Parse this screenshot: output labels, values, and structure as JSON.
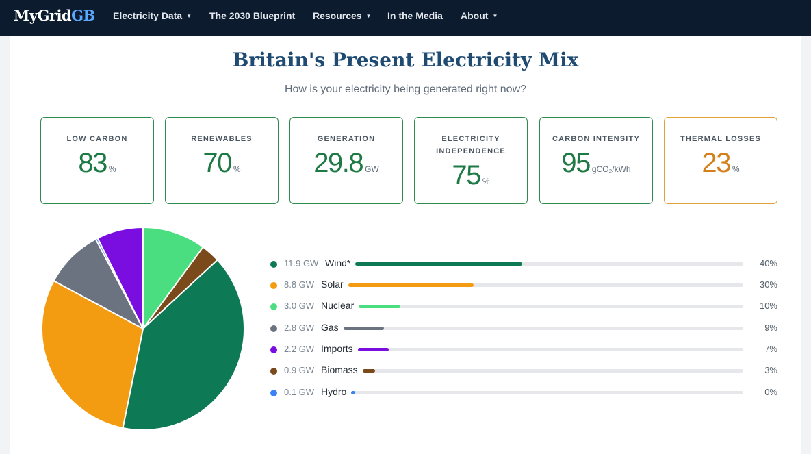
{
  "brand": {
    "part1": "MyGrid",
    "part2": "GB"
  },
  "nav": [
    {
      "label": "Electricity Data",
      "dropdown": true
    },
    {
      "label": "The 2030 Blueprint",
      "dropdown": false
    },
    {
      "label": "Resources",
      "dropdown": true
    },
    {
      "label": "In the Media",
      "dropdown": false
    },
    {
      "label": "About",
      "dropdown": true
    }
  ],
  "page": {
    "title": "Britain's Present Electricity Mix",
    "subtitle": "How is your electricity being generated right now?"
  },
  "cards": [
    {
      "label": "LOW CARBON",
      "value": "83",
      "unit": "%"
    },
    {
      "label": "RENEWABLES",
      "value": "70",
      "unit": "%"
    },
    {
      "label": "GENERATION",
      "value": "29.8",
      "unit": "GW"
    },
    {
      "label": "ELECTRICITY INDEPENDENCE",
      "value": "75",
      "unit": "%"
    },
    {
      "label": "CARBON INTENSITY",
      "value": "95",
      "unit": "gCO₂/kWh"
    },
    {
      "label": "THERMAL LOSSES",
      "value": "23",
      "unit": "%"
    }
  ],
  "colors": {
    "navbar": "#0d1b2e",
    "title": "#1f4b73",
    "good": "#1e7a45",
    "warn": "#d4801a"
  },
  "chart_data": {
    "type": "pie",
    "series": [
      {
        "name": "Wind*",
        "gw": "11.9 GW",
        "percent_label": "40%",
        "value": 11.9,
        "color": "#0e7a55"
      },
      {
        "name": "Solar",
        "gw": "8.8 GW",
        "percent_label": "30%",
        "value": 8.8,
        "color": "#f39c12"
      },
      {
        "name": "Nuclear",
        "gw": "3.0 GW",
        "percent_label": "10%",
        "value": 3.0,
        "color": "#4ade80"
      },
      {
        "name": "Gas",
        "gw": "2.8 GW",
        "percent_label": "9%",
        "value": 2.8,
        "color": "#6b7280"
      },
      {
        "name": "Imports",
        "gw": "2.2 GW",
        "percent_label": "7%",
        "value": 2.2,
        "color": "#7a0ee0"
      },
      {
        "name": "Biomass",
        "gw": "0.9 GW",
        "percent_label": "3%",
        "value": 0.9,
        "color": "#7a4a1a"
      },
      {
        "name": "Hydro",
        "gw": "0.1 GW",
        "percent_label": "0%",
        "value": 0.1,
        "color": "#3b82f6"
      }
    ],
    "pie_order": [
      "Nuclear",
      "Biomass",
      "Wind*",
      "Solar",
      "Gas",
      "Hydro",
      "Imports"
    ]
  }
}
